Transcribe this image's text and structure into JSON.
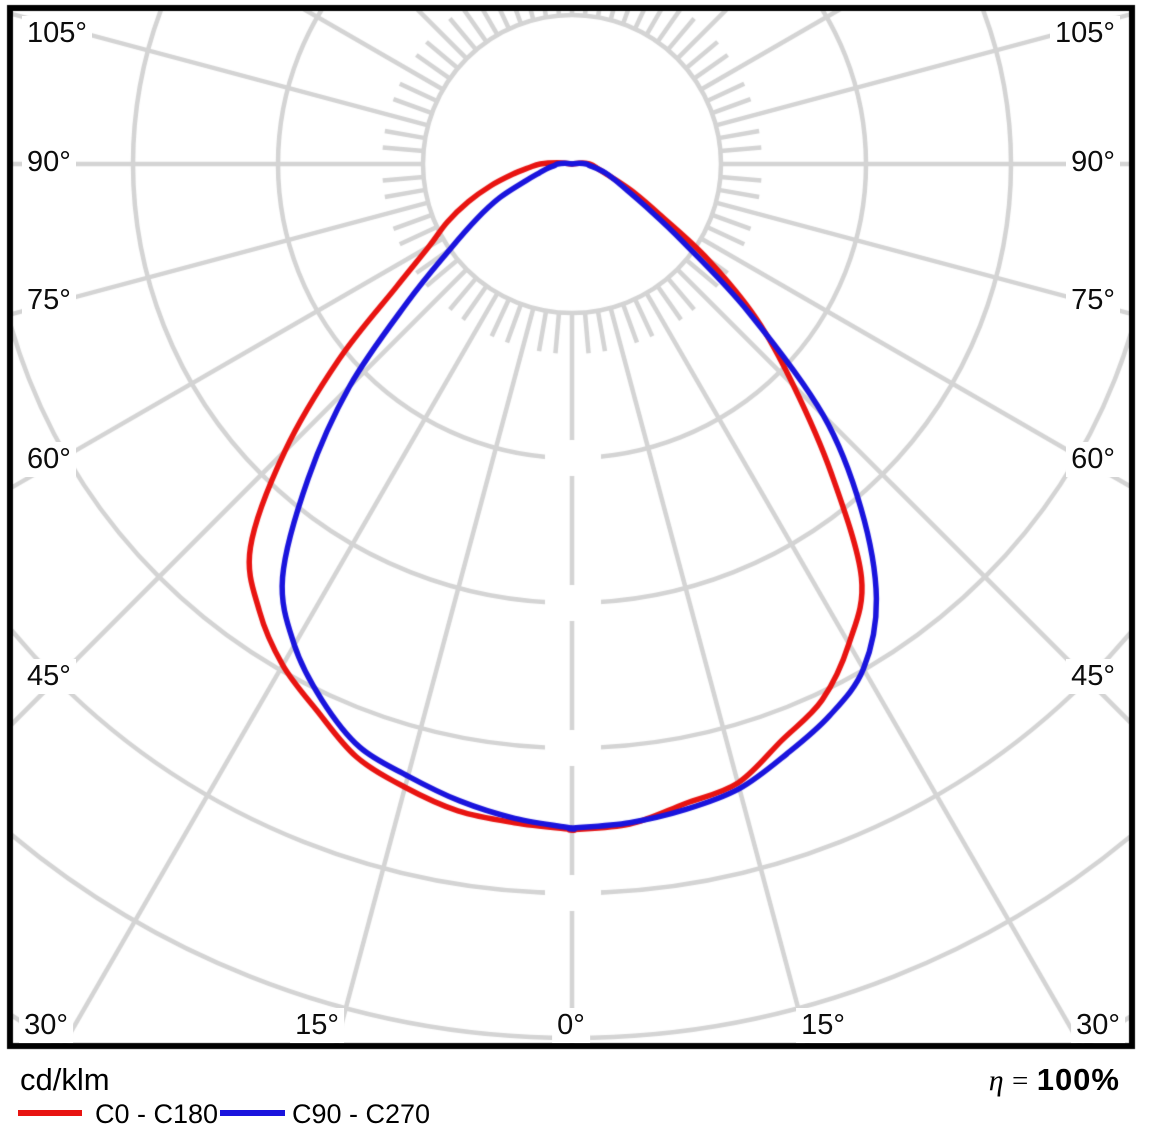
{
  "labels": {
    "unit": "cd/klm",
    "efficiency_symbol": "η",
    "efficiency_eq": "=",
    "efficiency_value": "100%"
  },
  "axis": {
    "left": [
      "105°",
      "90°",
      "75°",
      "60°",
      "45°"
    ],
    "right": [
      "105°",
      "90°",
      "75°",
      "60°",
      "45°"
    ],
    "bottom": [
      "30°",
      "15°",
      "0°",
      "15°",
      "30°"
    ]
  },
  "legend": [
    {
      "label": "C0 - C180",
      "color": "#e81411"
    },
    {
      "label": "C90 - C270",
      "color": "#1a14dd"
    }
  ],
  "grid_color": "#d4d4d4",
  "border_color": "#000000",
  "chart_data": {
    "type": "line",
    "subtype": "polar-luminous-intensity-distribution",
    "title": "",
    "unit": "cd/klm",
    "efficiency": "100%",
    "angle_zero_direction": "down",
    "angle_tick_labels_deg": [
      0,
      15,
      30,
      45,
      60,
      75,
      90,
      105
    ],
    "radial_rings_unlabeled": true,
    "gamma_deg": [
      0,
      5,
      10,
      15,
      20,
      25,
      30,
      35,
      40,
      45,
      50,
      55,
      60,
      65,
      70,
      75,
      80,
      85,
      90,
      95,
      100
    ],
    "series": [
      {
        "name": "C0 - C180",
        "color": "#e81411",
        "r_rings_right_C0": [
          4.59,
          4.57,
          4.48,
          4.42,
          4.23,
          4.08,
          3.82,
          3.48,
          2.78,
          2.16,
          1.66,
          1.14,
          0.7,
          0.48,
          0.32,
          0.23,
          0.18,
          0.15,
          0.12,
          0.07,
          0.0
        ],
        "r_rings_left_C180": [
          4.59,
          4.56,
          4.53,
          4.45,
          4.35,
          4.16,
          3.99,
          3.76,
          3.45,
          2.8,
          2.1,
          1.48,
          1.14,
          0.95,
          0.76,
          0.58,
          0.42,
          0.3,
          0.22,
          0.1,
          0.0
        ]
      },
      {
        "name": "C90 - C270",
        "color": "#1a14dd",
        "r_rings_right_C90": [
          4.58,
          4.56,
          4.52,
          4.46,
          4.33,
          4.2,
          4.02,
          3.66,
          3.1,
          2.45,
          1.59,
          0.93,
          0.59,
          0.41,
          0.31,
          0.24,
          0.17,
          0.12,
          0.1,
          0.05,
          0.0
        ],
        "r_rings_left_C270": [
          4.58,
          4.53,
          4.46,
          4.37,
          4.28,
          4.08,
          3.83,
          3.48,
          2.83,
          2.17,
          1.48,
          1.03,
          0.76,
          0.55,
          0.34,
          0.23,
          0.17,
          0.12,
          0.1,
          0.05,
          0.0
        ]
      }
    ]
  }
}
